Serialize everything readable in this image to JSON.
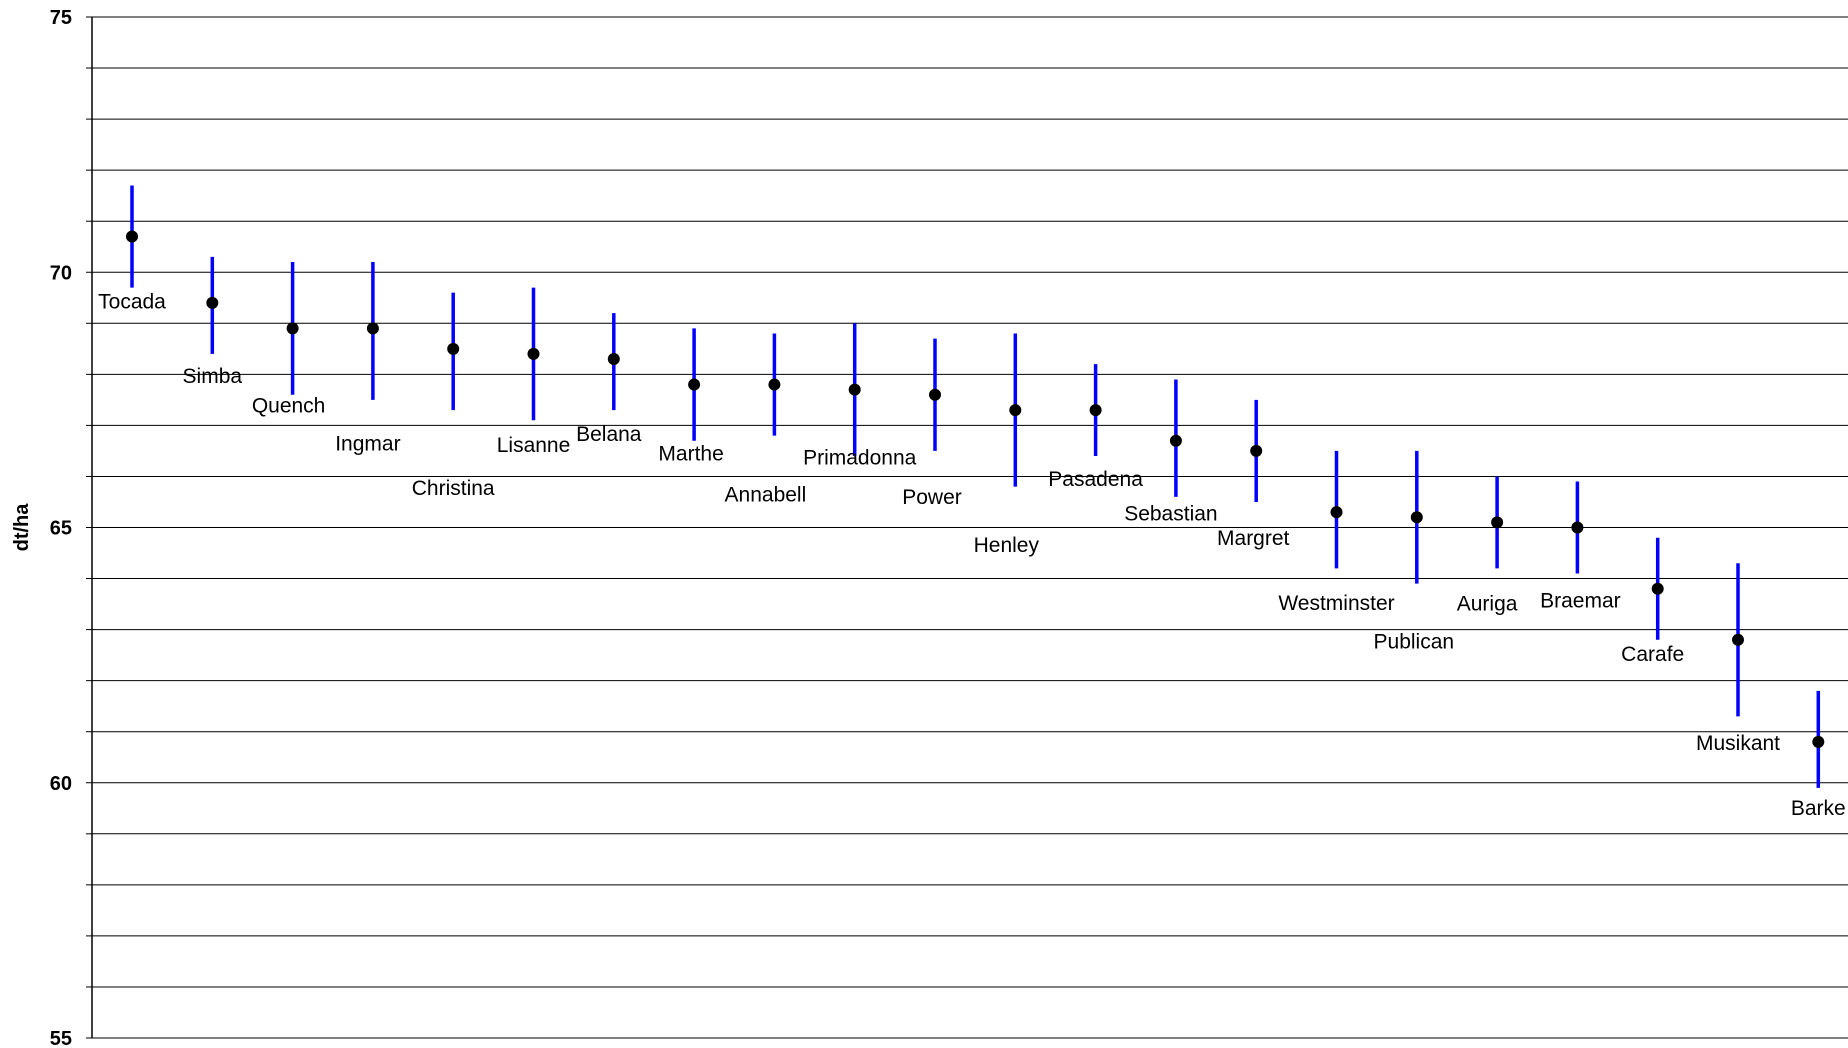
{
  "chart_data": {
    "type": "scatter",
    "title": "",
    "xlabel": "",
    "ylabel": "dt/ha",
    "ylim": [
      55,
      75
    ],
    "yticks": [
      "55",
      "60",
      "65",
      "70",
      "75"
    ],
    "grid_minor_step": 1,
    "grid": true,
    "legend": "none",
    "colors": {
      "point": "#000000",
      "errorbar": "#0000ff",
      "grid": "#000000"
    },
    "series": [
      {
        "points": [
          {
            "label": "Tocada",
            "y": 70.7,
            "low": 69.7,
            "high": 71.7
          },
          {
            "label": "Simba",
            "y": 69.4,
            "low": 68.4,
            "high": 70.3
          },
          {
            "label": "Quench",
            "y": 68.9,
            "low": 67.6,
            "high": 70.2
          },
          {
            "label": "Ingmar",
            "y": 68.9,
            "low": 67.5,
            "high": 70.2
          },
          {
            "label": "Christina",
            "y": 68.5,
            "low": 67.3,
            "high": 69.6
          },
          {
            "label": "Lisanne",
            "y": 68.4,
            "low": 67.1,
            "high": 69.7
          },
          {
            "label": "Belana",
            "y": 68.3,
            "low": 67.3,
            "high": 69.2
          },
          {
            "label": "Marthe",
            "y": 67.8,
            "low": 66.7,
            "high": 68.9
          },
          {
            "label": "Annabell",
            "y": 67.8,
            "low": 66.8,
            "high": 68.8
          },
          {
            "label": "Primadonna",
            "y": 67.7,
            "low": 66.4,
            "high": 69.0
          },
          {
            "label": "Power",
            "y": 67.6,
            "low": 66.5,
            "high": 68.7
          },
          {
            "label": "Henley",
            "y": 67.3,
            "low": 65.8,
            "high": 68.8
          },
          {
            "label": "Pasadena",
            "y": 67.3,
            "low": 66.4,
            "high": 68.2
          },
          {
            "label": "Sebastian",
            "y": 66.7,
            "low": 65.6,
            "high": 67.9
          },
          {
            "label": "Margret",
            "y": 66.5,
            "low": 65.5,
            "high": 67.5
          },
          {
            "label": "Westminster",
            "y": 65.3,
            "low": 64.2,
            "high": 66.5
          },
          {
            "label": "Publican",
            "y": 65.2,
            "low": 63.9,
            "high": 66.5
          },
          {
            "label": "Auriga",
            "y": 65.1,
            "low": 64.2,
            "high": 66.0
          },
          {
            "label": "Braemar",
            "y": 65.0,
            "low": 64.1,
            "high": 65.9
          },
          {
            "label": "Carafe",
            "y": 63.8,
            "low": 62.8,
            "high": 64.8
          },
          {
            "label": "Musikant",
            "y": 62.8,
            "low": 61.3,
            "high": 64.3
          },
          {
            "label": "Barke",
            "y": 60.8,
            "low": 59.9,
            "high": 61.8
          }
        ]
      }
    ]
  }
}
